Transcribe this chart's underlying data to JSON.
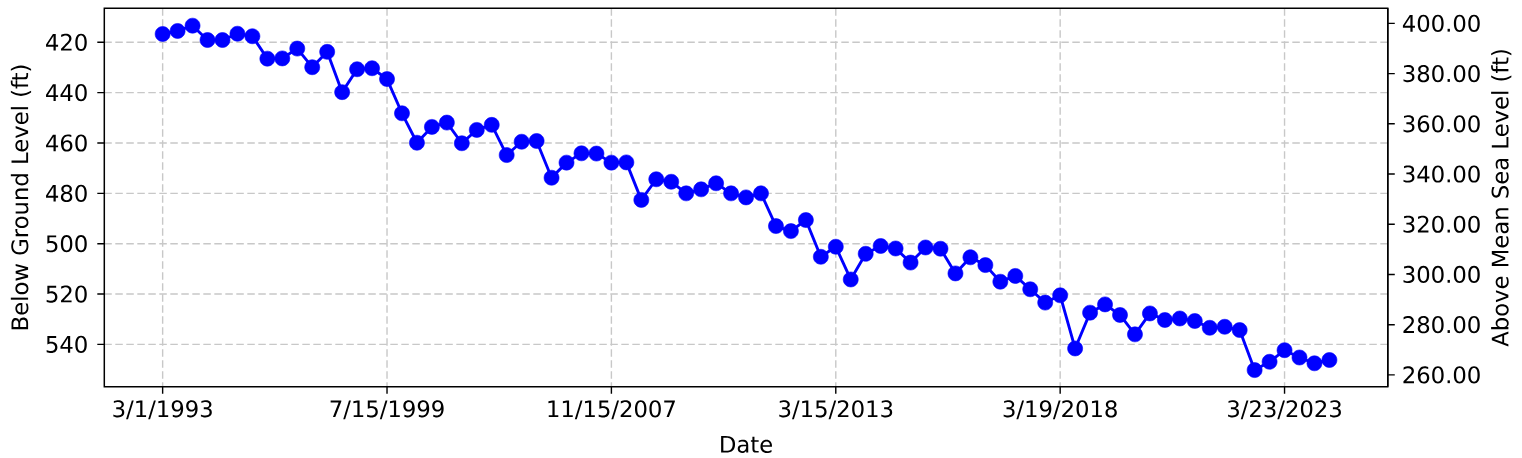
{
  "chart_data": {
    "type": "line",
    "xlabel": "Date",
    "ylabel": "Below Ground Level (ft)",
    "y2label": "Above Mean Sea Level (ft)",
    "categories": [
      "3/1/1993",
      null,
      null,
      null,
      null,
      null,
      null,
      null,
      null,
      null,
      null,
      null,
      null,
      null,
      null,
      "7/15/1999",
      null,
      null,
      null,
      null,
      null,
      null,
      null,
      null,
      null,
      null,
      null,
      null,
      null,
      null,
      "11/15/2007",
      null,
      null,
      null,
      null,
      null,
      null,
      null,
      null,
      null,
      null,
      null,
      null,
      null,
      null,
      "3/15/2013",
      null,
      null,
      null,
      null,
      null,
      null,
      null,
      null,
      null,
      null,
      null,
      null,
      null,
      null,
      "3/19/2018",
      null,
      null,
      null,
      null,
      null,
      null,
      null,
      null,
      null,
      null,
      null,
      null,
      null,
      null,
      "3/23/2023",
      null,
      null,
      null
    ],
    "series": [
      {
        "color": "#0000ff",
        "values": [
          416.7,
          415.5,
          413.4,
          419.1,
          419.1,
          416.6,
          417.6,
          426.5,
          426.4,
          422.5,
          429.9,
          423.8,
          439.8,
          430.7,
          430.3,
          434.6,
          448.2,
          459.9,
          453.6,
          451.9,
          460.1,
          454.8,
          452.8,
          464.8,
          459.5,
          459.2,
          473.8,
          467.8,
          464.1,
          464.2,
          467.8,
          467.7,
          482.6,
          474.4,
          475.4,
          480.0,
          478.4,
          476.0,
          480.0,
          481.6,
          480.0,
          493.0,
          495.0,
          490.6,
          505.2,
          501.2,
          514.2,
          504.0,
          500.9,
          501.9,
          507.5,
          501.5,
          502.0,
          511.8,
          505.4,
          508.5,
          515.1,
          512.8,
          518.1,
          523.4,
          520.5,
          541.6,
          527.4,
          524.1,
          528.3,
          536.0,
          527.7,
          530.3,
          529.7,
          530.7,
          533.4,
          533.0,
          534.3,
          550.2,
          546.9,
          542.3,
          545.2,
          547.5,
          546.2
        ]
      }
    ],
    "ylim": [
      556.8,
      406.5
    ],
    "yticks": [
      420,
      440,
      460,
      480,
      500,
      520,
      540
    ],
    "y2lim": [
      255.3,
      406.0
    ],
    "y2ticks": [
      {
        "value": 260,
        "label": "260.00"
      },
      {
        "value": 280,
        "label": "280.00"
      },
      {
        "value": 300,
        "label": "300.00"
      },
      {
        "value": 320,
        "label": "320.00"
      },
      {
        "value": 340,
        "label": "340.00"
      },
      {
        "value": 360,
        "label": "360.00"
      },
      {
        "value": 380,
        "label": "380.00"
      },
      {
        "value": 400,
        "label": "400.00"
      }
    ],
    "grid": true,
    "marker": "circle",
    "line_style": "solid"
  }
}
